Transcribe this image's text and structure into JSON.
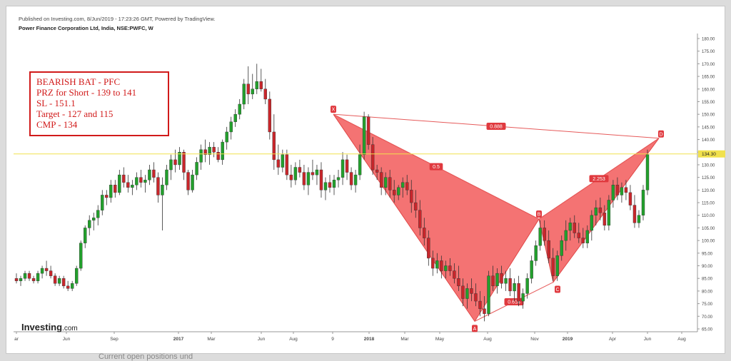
{
  "header": {
    "published": "Published on Investing.com, 8/Jun/2019 - 17:23:26 GMT, Powered by TradingView.",
    "symbol": "Power Finance Corporation Ltd, India, NSE:PWFC, W"
  },
  "annotation_box": {
    "lines": [
      "BEARISH BAT - PFC",
      "PRZ for Short - 139 to 141",
      "SL - 151.1",
      "Target - 127 and 115",
      "CMP - 134"
    ]
  },
  "logo": {
    "main": "Investing",
    "suffix": ".com"
  },
  "bottom_partial_text": "Current open positions und",
  "colors": {
    "up": "#22a02c",
    "down": "#c9262b",
    "pattern": "#f25b5b",
    "current_line": "#f1e14d",
    "label_bg": "#e0393e"
  },
  "chart_data": {
    "type": "candlestick",
    "y_axis": {
      "min": 65,
      "max": 180,
      "ticks": [
        "180.00",
        "175.00",
        "170.00",
        "165.00",
        "160.00",
        "155.00",
        "150.00",
        "145.00",
        "140.00",
        "135.00",
        "130.00",
        "125.00",
        "120.00",
        "115.00",
        "110.00",
        "105.00",
        "100.00",
        "95.00",
        "90.00",
        "85.00",
        "80.00",
        "75.00",
        "70.00",
        "65.00"
      ],
      "side": "right"
    },
    "x_axis": {
      "labels": [
        "ar",
        "Jun",
        "Sep",
        "2017",
        "Mar",
        "Jun",
        "Aug",
        "9",
        "2018",
        "Mar",
        "May",
        "Aug",
        "Nov",
        "2019",
        "Apr",
        "Jun",
        "Aug"
      ]
    },
    "current_price_label": "134.30",
    "current_price": 134.3,
    "pattern": {
      "name": "Bearish Bat",
      "points": [
        {
          "label": "X",
          "value": 150
        },
        {
          "label": "A",
          "value": 68
        },
        {
          "label": "B",
          "value": 108.5
        },
        {
          "label": "C",
          "value": 83.5
        },
        {
          "label": "D",
          "value": 140.5
        }
      ],
      "ratios": [
        {
          "text": "0.888",
          "between": "XD"
        },
        {
          "text": "0.5",
          "between": "XB"
        },
        {
          "text": "0.618",
          "between": "AC"
        },
        {
          "text": "2.253",
          "between": "BD"
        }
      ]
    },
    "candles": [
      [
        85,
        87,
        83,
        84
      ],
      [
        84,
        86,
        82,
        85
      ],
      [
        85,
        88,
        84,
        87
      ],
      [
        87,
        88,
        84,
        85
      ],
      [
        85,
        86,
        83,
        84
      ],
      [
        84,
        88,
        83,
        87
      ],
      [
        87,
        90,
        85,
        89
      ],
      [
        89,
        92,
        86,
        88
      ],
      [
        88,
        90,
        85,
        86
      ],
      [
        86,
        87,
        82,
        83
      ],
      [
        83,
        86,
        82,
        85
      ],
      [
        85,
        86,
        81,
        82
      ],
      [
        82,
        84,
        80,
        81
      ],
      [
        81,
        84,
        80,
        83
      ],
      [
        83,
        90,
        82,
        89
      ],
      [
        89,
        100,
        88,
        99
      ],
      [
        99,
        106,
        97,
        105
      ],
      [
        105,
        110,
        102,
        108
      ],
      [
        108,
        111,
        104,
        109
      ],
      [
        109,
        114,
        106,
        112
      ],
      [
        112,
        120,
        110,
        118
      ],
      [
        118,
        120,
        114,
        117
      ],
      [
        117,
        124,
        115,
        122
      ],
      [
        122,
        124,
        117,
        119
      ],
      [
        119,
        128,
        118,
        126
      ],
      [
        126,
        129,
        121,
        123
      ],
      [
        123,
        126,
        119,
        121
      ],
      [
        121,
        124,
        118,
        122
      ],
      [
        122,
        127,
        120,
        125
      ],
      [
        125,
        128,
        121,
        123
      ],
      [
        123,
        126,
        119,
        124
      ],
      [
        124,
        130,
        122,
        128
      ],
      [
        128,
        131,
        123,
        125
      ],
      [
        125,
        127,
        115,
        118
      ],
      [
        118,
        125,
        104,
        122
      ],
      [
        122,
        130,
        120,
        128
      ],
      [
        128,
        134,
        124,
        132
      ],
      [
        132,
        136,
        127,
        130
      ],
      [
        130,
        137,
        128,
        135
      ],
      [
        135,
        136,
        124,
        127
      ],
      [
        127,
        128,
        118,
        120
      ],
      [
        120,
        128,
        119,
        126
      ],
      [
        126,
        133,
        124,
        131
      ],
      [
        131,
        138,
        128,
        136
      ],
      [
        136,
        140,
        131,
        134
      ],
      [
        134,
        139,
        130,
        137
      ],
      [
        137,
        139,
        133,
        135
      ],
      [
        135,
        137,
        131,
        132
      ],
      [
        132,
        140,
        130,
        139
      ],
      [
        139,
        145,
        136,
        143
      ],
      [
        143,
        149,
        140,
        147
      ],
      [
        147,
        152,
        145,
        150
      ],
      [
        150,
        156,
        148,
        154
      ],
      [
        154,
        164,
        152,
        162
      ],
      [
        162,
        169,
        154,
        158
      ],
      [
        158,
        166,
        156,
        160
      ],
      [
        160,
        170,
        158,
        163
      ],
      [
        163,
        168,
        159,
        160
      ],
      [
        160,
        164,
        154,
        156
      ],
      [
        156,
        159,
        140,
        143
      ],
      [
        143,
        150,
        128,
        132
      ],
      [
        132,
        138,
        126,
        129
      ],
      [
        129,
        136,
        127,
        134
      ],
      [
        134,
        136,
        124,
        126
      ],
      [
        126,
        130,
        121,
        124
      ],
      [
        124,
        131,
        122,
        129
      ],
      [
        129,
        132,
        125,
        127
      ],
      [
        127,
        130,
        120,
        122
      ],
      [
        122,
        129,
        118,
        127
      ],
      [
        127,
        132,
        124,
        126
      ],
      [
        126,
        130,
        122,
        128
      ],
      [
        128,
        131,
        117,
        120
      ],
      [
        120,
        125,
        116,
        123
      ],
      [
        123,
        126,
        119,
        121
      ],
      [
        121,
        126,
        118,
        124
      ],
      [
        124,
        128,
        121,
        125
      ],
      [
        125,
        135,
        122,
        132
      ],
      [
        132,
        134,
        124,
        127
      ],
      [
        127,
        129,
        120,
        122
      ],
      [
        122,
        128,
        119,
        126
      ],
      [
        126,
        138,
        124,
        134
      ],
      [
        134,
        151,
        132,
        149
      ],
      [
        149,
        150,
        136,
        138
      ],
      [
        138,
        141,
        126,
        128
      ],
      [
        128,
        130,
        124,
        127
      ],
      [
        127,
        129,
        118,
        121
      ],
      [
        121,
        127,
        118,
        125
      ],
      [
        125,
        128,
        117,
        120
      ],
      [
        120,
        124,
        115,
        118
      ],
      [
        118,
        122,
        116,
        121
      ],
      [
        121,
        125,
        117,
        123
      ],
      [
        123,
        126,
        118,
        120
      ],
      [
        120,
        124,
        111,
        115
      ],
      [
        115,
        120,
        109,
        112
      ],
      [
        112,
        116,
        102,
        105
      ],
      [
        105,
        109,
        98,
        101
      ],
      [
        101,
        104,
        90,
        93
      ],
      [
        93,
        96,
        86,
        89
      ],
      [
        89,
        95,
        87,
        92
      ],
      [
        92,
        94,
        85,
        88
      ],
      [
        88,
        92,
        85,
        90
      ],
      [
        90,
        93,
        86,
        88
      ],
      [
        88,
        91,
        83,
        85
      ],
      [
        85,
        90,
        80,
        82
      ],
      [
        82,
        85,
        74,
        77
      ],
      [
        77,
        83,
        73,
        81
      ],
      [
        81,
        85,
        76,
        79
      ],
      [
        79,
        83,
        74,
        76
      ],
      [
        76,
        80,
        70,
        73
      ],
      [
        73,
        78,
        68,
        71
      ],
      [
        71,
        88,
        70,
        86
      ],
      [
        86,
        90,
        80,
        82
      ],
      [
        82,
        89,
        79,
        87
      ],
      [
        87,
        90,
        81,
        83
      ],
      [
        83,
        88,
        80,
        85
      ],
      [
        85,
        89,
        78,
        80
      ],
      [
        80,
        85,
        76,
        83
      ],
      [
        83,
        86,
        74,
        76
      ],
      [
        76,
        81,
        73,
        79
      ],
      [
        79,
        87,
        77,
        85
      ],
      [
        85,
        94,
        83,
        92
      ],
      [
        92,
        100,
        90,
        98
      ],
      [
        98,
        108,
        96,
        105
      ],
      [
        105,
        108,
        98,
        100
      ],
      [
        100,
        104,
        91,
        93
      ],
      [
        93,
        97,
        84,
        86
      ],
      [
        86,
        96,
        84,
        94
      ],
      [
        94,
        102,
        92,
        100
      ],
      [
        100,
        108,
        96,
        104
      ],
      [
        104,
        109,
        100,
        107
      ],
      [
        107,
        110,
        101,
        103
      ],
      [
        103,
        107,
        99,
        101
      ],
      [
        101,
        105,
        97,
        99
      ],
      [
        99,
        106,
        97,
        104
      ],
      [
        104,
        112,
        100,
        110
      ],
      [
        110,
        116,
        106,
        113
      ],
      [
        113,
        117,
        108,
        111
      ],
      [
        111,
        114,
        104,
        106
      ],
      [
        106,
        118,
        104,
        116
      ],
      [
        116,
        124,
        113,
        122
      ],
      [
        122,
        125,
        116,
        118
      ],
      [
        118,
        123,
        115,
        121
      ],
      [
        121,
        124,
        116,
        119
      ],
      [
        119,
        122,
        112,
        114
      ],
      [
        114,
        118,
        105,
        107
      ],
      [
        107,
        112,
        105,
        110
      ],
      [
        110,
        122,
        108,
        120
      ],
      [
        120,
        136,
        118,
        134
      ]
    ]
  }
}
